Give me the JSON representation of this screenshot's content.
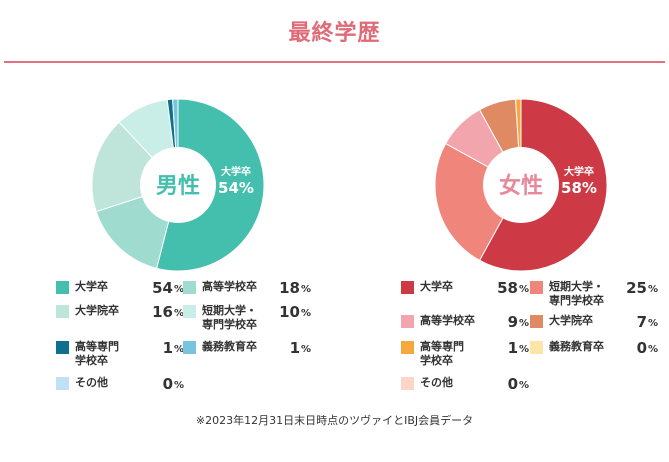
{
  "page_title": "最終学歴",
  "note": "※2023年12月31日末日時点のツヴァイとIBJ会員データ",
  "pct_symbol": "%",
  "chart_data": [
    {
      "type": "pie",
      "center_label": "男性",
      "center_color": "#45bfad",
      "highlight": {
        "label": "大学卒",
        "value": "54%",
        "color": "#ffffff"
      },
      "slices": [
        {
          "label": "大学卒",
          "value": 54,
          "color": "#45bfad"
        },
        {
          "label": "大学院卒",
          "value": 16,
          "color": "#9fdccf"
        },
        {
          "label": "高等学校卒",
          "value": 18,
          "color": "#bfe4da"
        },
        {
          "label": "短期大学・\n専門学校卒",
          "value": 10,
          "color": "#c9eee8"
        },
        {
          "label": "高等専門\n学校卒",
          "value": 1,
          "color": "#0f6f8f"
        },
        {
          "label": "義務教育卒",
          "value": 1,
          "color": "#79c4dd"
        },
        {
          "label": "その他",
          "value": 0,
          "color": "#bfe1f5"
        }
      ],
      "legend": [
        {
          "label": "大学卒",
          "value": "54",
          "color": "#45bfad"
        },
        {
          "label": "高等学校卒",
          "value": "18",
          "color": "#9fdccf"
        },
        {
          "label": "大学院卒",
          "value": "16",
          "color": "#bfe4da"
        },
        {
          "label": "短期大学・\n専門学校卒",
          "value": "10",
          "color": "#c9eee8"
        },
        {
          "label": "高等専門\n学校卒",
          "value": "1",
          "color": "#0f6f8f"
        },
        {
          "label": "義務教育卒",
          "value": "1",
          "color": "#79c4dd"
        },
        {
          "label": "その他",
          "value": "0",
          "color": "#bfe1f5"
        }
      ]
    },
    {
      "type": "pie",
      "center_label": "女性",
      "center_color": "#e8899a",
      "highlight": {
        "label": "大学卒",
        "value": "58%",
        "color": "#ffffff"
      },
      "slices": [
        {
          "label": "大学卒",
          "value": 58,
          "color": "#cd3a45"
        },
        {
          "label": "短期大学・\n専門学校卒",
          "value": 25,
          "color": "#ef857b"
        },
        {
          "label": "高等学校卒",
          "value": 9,
          "color": "#f3a5ad"
        },
        {
          "label": "大学院卒",
          "value": 7,
          "color": "#e08a63"
        },
        {
          "label": "高等専門\n学校卒",
          "value": 1,
          "color": "#f7a83c"
        },
        {
          "label": "義務教育卒",
          "value": 0,
          "color": "#fde5a8"
        },
        {
          "label": "その他",
          "value": 0,
          "color": "#fdd4c5"
        }
      ],
      "legend": [
        {
          "label": "大学卒",
          "value": "58",
          "color": "#cd3a45"
        },
        {
          "label": "短期大学・\n専門学校卒",
          "value": "25",
          "color": "#ef857b"
        },
        {
          "label": "高等学校卒",
          "value": "9",
          "color": "#f3a5ad"
        },
        {
          "label": "大学院卒",
          "value": "7",
          "color": "#e08a63"
        },
        {
          "label": "高等専門\n学校卒",
          "value": "1",
          "color": "#f7a83c"
        },
        {
          "label": "義務教育卒",
          "value": "0",
          "color": "#fde5a8"
        },
        {
          "label": "その他",
          "value": "0",
          "color": "#fdd4c5"
        }
      ]
    }
  ]
}
